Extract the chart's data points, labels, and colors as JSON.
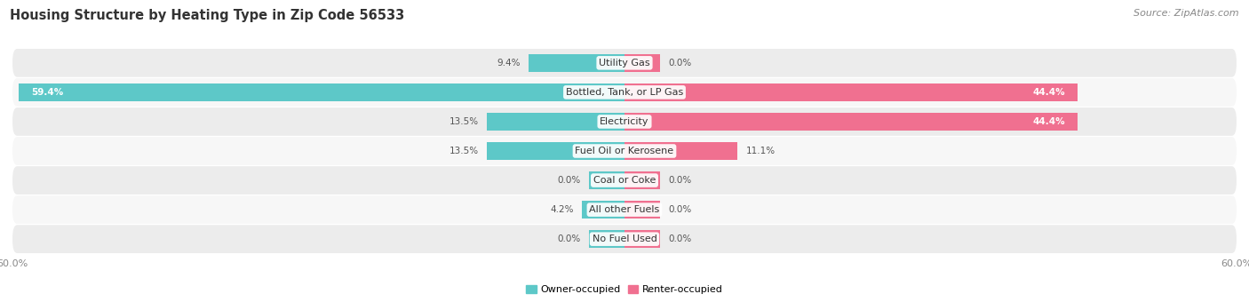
{
  "title": "Housing Structure by Heating Type in Zip Code 56533",
  "source": "Source: ZipAtlas.com",
  "categories": [
    "Utility Gas",
    "Bottled, Tank, or LP Gas",
    "Electricity",
    "Fuel Oil or Kerosene",
    "Coal or Coke",
    "All other Fuels",
    "No Fuel Used"
  ],
  "owner_values": [
    9.4,
    59.4,
    13.5,
    13.5,
    0.0,
    4.2,
    0.0
  ],
  "renter_values": [
    0.0,
    44.4,
    44.4,
    11.1,
    0.0,
    0.0,
    0.0
  ],
  "owner_color": "#5DC8C8",
  "renter_color": "#F07090",
  "owner_label": "Owner-occupied",
  "renter_label": "Renter-occupied",
  "xlim": 60.0,
  "bar_height": 0.62,
  "row_bg_even": "#ECECEC",
  "row_bg_odd": "#F7F7F7",
  "title_fontsize": 10.5,
  "label_fontsize": 8.0,
  "value_fontsize": 7.5,
  "tick_fontsize": 8,
  "source_fontsize": 8,
  "stub_size": 3.5
}
